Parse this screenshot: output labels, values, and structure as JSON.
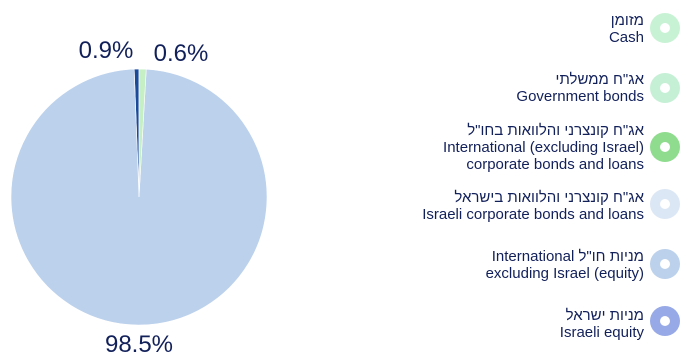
{
  "chart_data": {
    "type": "pie",
    "slices": [
      {
        "label": "Israeli equity",
        "label_he": "מניות ישראל",
        "value": 0.6,
        "value_label": "0.6%",
        "color": "#1a4a9a"
      },
      {
        "label": "International excluding Israel (equity)",
        "label_he": "מניות חו\"ל",
        "value": 98.5,
        "value_label": "98.5%",
        "color": "#bcd1ec"
      },
      {
        "label": "Israeli corporate bonds and loans",
        "label_he": "אג\"ח קונצרני והלוואות בישראל",
        "value": 0,
        "color": "#dce7f5"
      },
      {
        "label": "International (excluding Israel) corporate bonds and loans",
        "label_he": "אג\"ח קונצרני והלוואות בחו\"ל",
        "value": 0.9,
        "value_label": "0.9%",
        "color": "#c6efc6"
      },
      {
        "label": "Government bonds",
        "label_he": "אג\"ח ממשלתי",
        "value": 0,
        "color": "#c6f0d6"
      },
      {
        "label": "Cash",
        "label_he": "מזומן",
        "value": 0,
        "color": "#c8f2d4"
      }
    ]
  },
  "legend": [
    {
      "he": "מזומן",
      "en": [
        "Cash"
      ],
      "color": "#c8f2d4"
    },
    {
      "he": "אג\"ח ממשלתי",
      "en": [
        "Government bonds"
      ],
      "color": "#c6f0d6"
    },
    {
      "he": "אג\"ח קונצרני והלוואות בחו\"ל",
      "en": [
        "International (excluding Israel)",
        "corporate bonds and loans"
      ],
      "color": "#8fdc8f"
    },
    {
      "he": "אג\"ח קונצרני והלוואות בישראל",
      "en": [
        "Israeli corporate bonds and loans"
      ],
      "color": "#dce7f5"
    },
    {
      "he": "מניות חו\"ל International",
      "en": [
        "excluding Israel (equity)"
      ],
      "color": "#bcd1ec"
    },
    {
      "he": "מניות ישראל",
      "en": [
        "Israeli equity"
      ],
      "color": "#97a9e6"
    }
  ]
}
